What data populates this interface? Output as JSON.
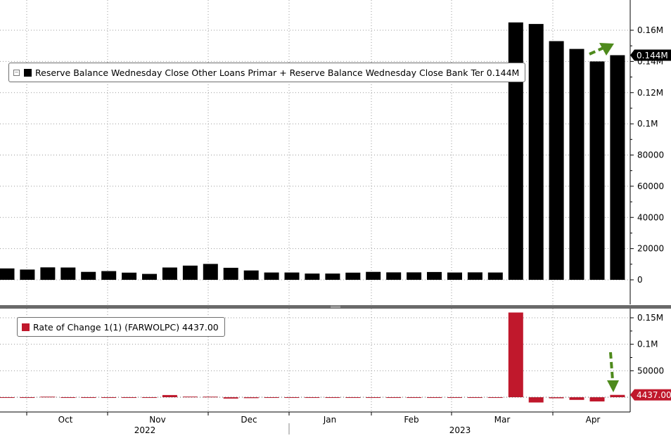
{
  "chart_data": [
    {
      "type": "bar",
      "panel": "top",
      "legend": {
        "icon": "collapse-box-icon",
        "label": "Reserve Balance Wednesday Close Other Loans Primar + Reserve Balance Wednesday Close Bank Ter 0.144M",
        "color": "#000000"
      },
      "last_value_label": "0.144M",
      "y_ticks": [
        {
          "value": 160000,
          "label": "0.16M"
        },
        {
          "value": 140000,
          "label": "0.14M"
        },
        {
          "value": 120000,
          "label": "0.12M"
        },
        {
          "value": 100000,
          "label": "0.1M"
        },
        {
          "value": 80000,
          "label": "80000"
        },
        {
          "value": 60000,
          "label": "60000"
        },
        {
          "value": 40000,
          "label": "40000"
        },
        {
          "value": 20000,
          "label": "20000"
        },
        {
          "value": 0,
          "label": "0"
        }
      ],
      "ylim": [
        0,
        176000
      ],
      "values": [
        7300,
        6600,
        8000,
        7900,
        5100,
        5600,
        4600,
        3800,
        7900,
        9100,
        10200,
        7700,
        6000,
        4700,
        4700,
        4000,
        4000,
        4600,
        5100,
        4800,
        4800,
        5000,
        4700,
        4800,
        4700,
        165000,
        164000,
        153000,
        148000,
        140000,
        144000
      ],
      "color": "#000000",
      "grid": true,
      "annotation": "green dashed arrow pointing to last bar"
    },
    {
      "type": "bar",
      "panel": "bottom",
      "legend": {
        "label": "Rate of Change 1(1) (FARWOLPC) 4437.00",
        "color": "#c0182c"
      },
      "last_value_label": "4437.00",
      "y_ticks": [
        {
          "value": 150000,
          "label": "0.15M"
        },
        {
          "value": 100000,
          "label": "0.1M"
        },
        {
          "value": 50000,
          "label": "50000"
        }
      ],
      "ylim": [
        -20000,
        165000
      ],
      "values": [
        0,
        0,
        1000,
        0,
        -1000,
        0,
        0,
        0,
        4100,
        1200,
        1100,
        -2500,
        -1700,
        0,
        0,
        0,
        0,
        0,
        0,
        0,
        0,
        0,
        0,
        0,
        0,
        160000,
        -10000,
        -2000,
        -5000,
        -8000,
        4437
      ],
      "color": "#c0182c",
      "grid": true,
      "annotation": "green dashed arrow pointing down to last bar"
    }
  ],
  "x_axis": {
    "month_labels": [
      "Oct",
      "Nov",
      "Dec",
      "Jan",
      "Feb",
      "Mar",
      "Apr"
    ],
    "year_labels": [
      "2022",
      "2023"
    ]
  },
  "colors": {
    "arrow": "#4e8a1c",
    "axis": "#000000",
    "grid": "#9a9a9a"
  }
}
